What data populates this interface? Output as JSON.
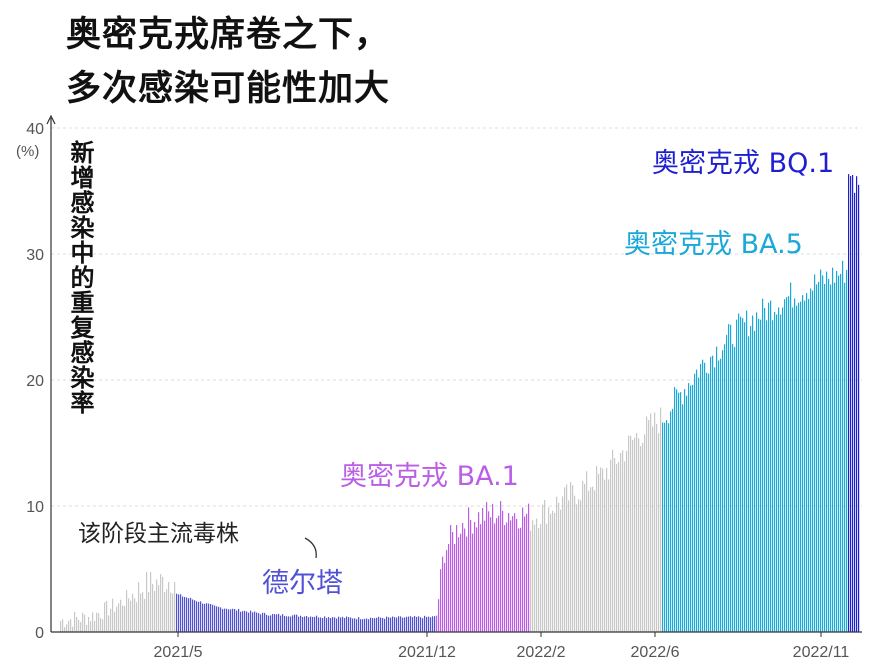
{
  "title_line1": "奥密克戎席卷之下，",
  "title_line2": "多次感染可能性加大",
  "chart_data": {
    "type": "bar",
    "ylabel": "新增感染中的重复感染率",
    "yunit": "(%)",
    "ylim": [
      0,
      40
    ],
    "yticks": [
      "0",
      "10",
      "20",
      "30",
      "40"
    ],
    "xticks": [
      "2021/5",
      "2021/12",
      "2022/2",
      "2022/6",
      "2022/11"
    ],
    "grid": true,
    "annotation": "该阶段主流毒株",
    "colors": {
      "other": "#c8c8c8",
      "delta": "#5151d6",
      "ba1": "#bb5ee6",
      "ba5": "#1aa8d8",
      "bq1": "#1f1fd2"
    },
    "segments": [
      {
        "variant": "",
        "color_key": "other",
        "start": 0.8,
        "end": 4.6,
        "anchors": [
          [
            0,
            0.9
          ],
          [
            0.25,
            1.2
          ],
          [
            0.5,
            2.2
          ],
          [
            0.75,
            3.8
          ],
          [
            1,
            4.2
          ]
        ]
      },
      {
        "variant": "德尔塔",
        "color_key": "delta",
        "start": 3.0,
        "end": 1.0,
        "anchors": [
          [
            0,
            3.0
          ],
          [
            0.15,
            2.0
          ],
          [
            0.35,
            1.4
          ],
          [
            0.7,
            1.1
          ],
          [
            1,
            1.2
          ]
        ]
      },
      {
        "variant": "奥密克戎 BA.1",
        "color_key": "ba1",
        "start": 1.4,
        "end": 9.5,
        "anchors": [
          [
            0,
            1.3
          ],
          [
            0.08,
            6.5
          ],
          [
            0.25,
            8.5
          ],
          [
            0.5,
            9.3
          ],
          [
            0.75,
            9.5
          ],
          [
            1,
            9.2
          ]
        ]
      },
      {
        "variant": "",
        "color_key": "other",
        "start": 9.0,
        "end": 16.5,
        "anchors": [
          [
            0,
            9.0
          ],
          [
            0.3,
            10.8
          ],
          [
            0.55,
            12.5
          ],
          [
            0.8,
            15.5
          ],
          [
            1,
            17.0
          ]
        ]
      },
      {
        "variant": "奥密克戎 BA.5",
        "color_key": "ba5",
        "start": 17.0,
        "end": 29.0,
        "anchors": [
          [
            0,
            17.0
          ],
          [
            0.2,
            21.0
          ],
          [
            0.4,
            24.0
          ],
          [
            0.6,
            26.0
          ],
          [
            0.8,
            27.5
          ],
          [
            1,
            28.8
          ]
        ]
      },
      {
        "variant": "奥密克戎 BQ.1",
        "color_key": "bq1",
        "start": 32.0,
        "end": 35.5,
        "anchors": [
          [
            0,
            32.0
          ],
          [
            0.5,
            31.0
          ],
          [
            1,
            35.5
          ]
        ]
      }
    ]
  }
}
